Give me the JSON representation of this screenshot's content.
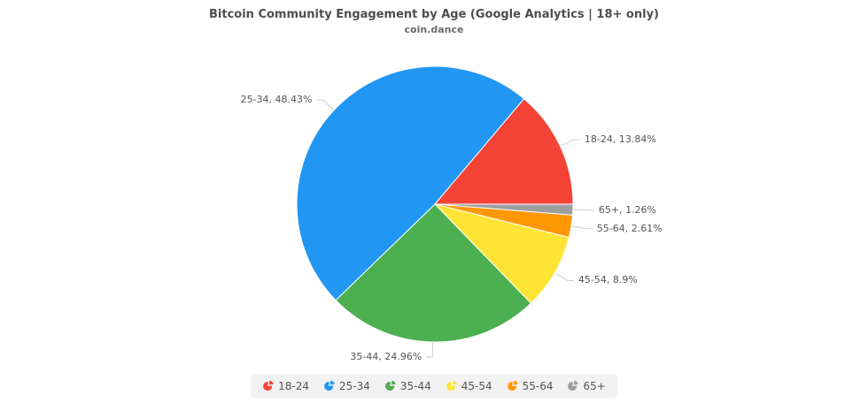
{
  "header": {
    "title": "Bitcoin Community Engagement by Age (Google Analytics | 18+ only)",
    "subtitle": "coin.dance"
  },
  "chart_data": {
    "type": "pie",
    "title": "Bitcoin Community Engagement by Age (Google Analytics | 18+ only)",
    "subtitle": "coin.dance",
    "value_unit": "percent",
    "slices": [
      {
        "label": "18-24",
        "value": 13.84,
        "color": "#F44336",
        "callout": "18-24, 13.84%"
      },
      {
        "label": "25-34",
        "value": 48.43,
        "color": "#2196F3",
        "callout": "25-34, 48.43%"
      },
      {
        "label": "35-44",
        "value": 24.96,
        "color": "#4CAF50",
        "callout": "35-44, 24.96%"
      },
      {
        "label": "45-54",
        "value": 8.9,
        "color": "#FFE436",
        "callout": "45-54, 8.9%"
      },
      {
        "label": "55-64",
        "value": 2.61,
        "color": "#FF9800",
        "callout": "55-64, 2.61%"
      },
      {
        "label": "65+",
        "value": 1.26,
        "color": "#9E9E9E",
        "callout": "65+, 1.26%"
      }
    ],
    "legend": [
      "18-24",
      "25-34",
      "35-44",
      "45-54",
      "55-64",
      "65+"
    ],
    "layout": {
      "legend_position": "bottom",
      "direction": "clockwise",
      "start_angle_deg": 0,
      "draw_order": [
        "65+",
        "55-64",
        "45-54",
        "35-44",
        "25-34",
        "18-24"
      ]
    },
    "colors": {
      "callout_line": "#CDCDCD",
      "label_text": "#545454",
      "legend_background": "#F2F2F2",
      "title_text": "#4D4D4D"
    }
  }
}
